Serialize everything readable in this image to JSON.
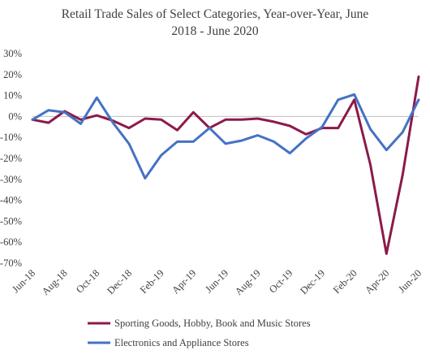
{
  "chart_data": {
    "type": "line",
    "title_line1": "Retail Trade Sales of Select Categories, Year-over-Year, June",
    "title_line2": "2018 - June 2020",
    "ylim": [
      -70,
      30
    ],
    "yticks": [
      30,
      20,
      10,
      0,
      -10,
      -20,
      -30,
      -40,
      -50,
      -60,
      -70
    ],
    "ytick_labels": [
      "30%",
      "20%",
      "10%",
      "0%",
      "-10%",
      "-20%",
      "-30%",
      "-40%",
      "-50%",
      "-60%",
      "-70%"
    ],
    "x": [
      "Jun-18",
      "Jul-18",
      "Aug-18",
      "Sep-18",
      "Oct-18",
      "Nov-18",
      "Dec-18",
      "Jan-19",
      "Feb-19",
      "Mar-19",
      "Apr-19",
      "May-19",
      "Jun-19",
      "Jul-19",
      "Aug-19",
      "Sep-19",
      "Oct-19",
      "Nov-19",
      "Dec-19",
      "Jan-20",
      "Feb-20",
      "Mar-20",
      "Apr-20",
      "May-20",
      "Jun-20"
    ],
    "xtick_labels": [
      "Jun-18",
      "Aug-18",
      "Oct-18",
      "Dec-18",
      "Feb-19",
      "Apr-19",
      "Jun-19",
      "Aug-19",
      "Oct-19",
      "Dec-19",
      "Feb-20",
      "Apr-20",
      "Jun-20"
    ],
    "grid": false,
    "legend_position": "bottom",
    "series": [
      {
        "name": "Sporting Goods, Hobby, Book and Music Stores",
        "color": "#8B1A4A",
        "values": [
          -1.5,
          -3,
          2.5,
          -1.5,
          0.5,
          -2,
          -5.5,
          -1,
          -1.5,
          -6.5,
          2,
          -5.5,
          -1.5,
          -1.5,
          -1,
          -2.5,
          -4.5,
          -8.5,
          -5.5,
          -5.5,
          8,
          -23,
          -65.5,
          -28,
          19
        ]
      },
      {
        "name": "Electronics and Appliance Stores",
        "color": "#4472C4",
        "values": [
          -1.5,
          3,
          2,
          -3.5,
          9,
          -3,
          -13,
          -29.5,
          -18.5,
          -12,
          -12,
          -5.5,
          -13,
          -11.5,
          -9,
          -12,
          -17.5,
          -10.5,
          -5,
          8,
          10.5,
          -6,
          -16,
          -7.5,
          8
        ]
      }
    ]
  }
}
